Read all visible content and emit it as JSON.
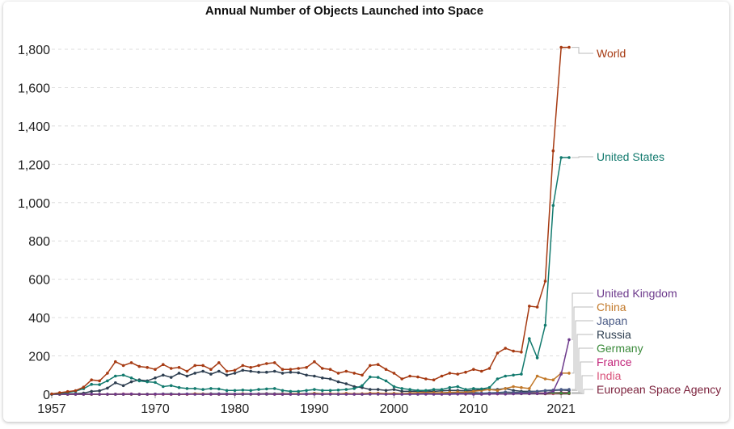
{
  "chart_data": {
    "type": "line",
    "title": "Annual Number of Objects Launched into Space",
    "xlabel": "",
    "ylabel": "",
    "xlim": [
      1957,
      2022
    ],
    "ylim": [
      0,
      1800
    ],
    "y_ticks": [
      0,
      200,
      400,
      600,
      800,
      1000,
      1200,
      1400,
      1600,
      1800
    ],
    "y_tick_labels": [
      "0",
      "200",
      "400",
      "600",
      "800",
      "1,000",
      "1,200",
      "1,400",
      "1,600",
      "1,800"
    ],
    "x_ticks": [
      1957,
      1970,
      1980,
      1990,
      2000,
      2010,
      2021
    ],
    "x_tick_labels": [
      "1957",
      "1970",
      "1980",
      "1990",
      "2000",
      "2010",
      "2021"
    ],
    "grid": true,
    "legend_placement": "right (end-of-line labels)",
    "x": [
      1957,
      1958,
      1959,
      1960,
      1961,
      1962,
      1963,
      1964,
      1965,
      1966,
      1967,
      1968,
      1969,
      1970,
      1971,
      1972,
      1973,
      1974,
      1975,
      1976,
      1977,
      1978,
      1979,
      1980,
      1981,
      1982,
      1983,
      1984,
      1985,
      1986,
      1987,
      1988,
      1989,
      1990,
      1991,
      1992,
      1993,
      1994,
      1995,
      1996,
      1997,
      1998,
      1999,
      2000,
      2001,
      2002,
      2003,
      2004,
      2005,
      2006,
      2007,
      2008,
      2009,
      2010,
      2011,
      2012,
      2013,
      2014,
      2015,
      2016,
      2017,
      2018,
      2019,
      2020,
      2021,
      2022
    ],
    "series": [
      {
        "name": "World",
        "color": "#a63a12",
        "values": [
          2,
          8,
          14,
          19,
          37,
          75,
          70,
          110,
          170,
          150,
          165,
          145,
          140,
          130,
          155,
          135,
          140,
          120,
          150,
          150,
          130,
          165,
          120,
          125,
          150,
          140,
          150,
          160,
          165,
          130,
          130,
          135,
          140,
          170,
          135,
          130,
          110,
          120,
          110,
          100,
          150,
          155,
          130,
          110,
          80,
          95,
          90,
          80,
          75,
          95,
          110,
          105,
          115,
          130,
          120,
          135,
          215,
          240,
          225,
          220,
          460,
          455,
          590,
          1270,
          1810,
          1810
        ]
      },
      {
        "name": "United States",
        "color": "#127a6e",
        "values": [
          1,
          5,
          10,
          16,
          29,
          52,
          50,
          70,
          95,
          100,
          85,
          70,
          65,
          62,
          40,
          45,
          35,
          30,
          30,
          25,
          30,
          28,
          20,
          20,
          22,
          20,
          25,
          28,
          30,
          20,
          15,
          15,
          20,
          25,
          20,
          20,
          22,
          25,
          30,
          45,
          90,
          88,
          70,
          40,
          30,
          25,
          20,
          20,
          25,
          25,
          35,
          40,
          25,
          30,
          28,
          35,
          80,
          95,
          100,
          105,
          290,
          190,
          360,
          985,
          1235,
          1235
        ]
      },
      {
        "name": "United Kingdom",
        "color": "#6d3a8c",
        "values": [
          0,
          0,
          0,
          0,
          0,
          1,
          0,
          0,
          0,
          0,
          1,
          0,
          0,
          1,
          1,
          0,
          0,
          1,
          0,
          0,
          0,
          1,
          0,
          0,
          1,
          1,
          0,
          1,
          0,
          0,
          0,
          0,
          0,
          1,
          0,
          1,
          0,
          0,
          0,
          0,
          1,
          1,
          0,
          0,
          0,
          0,
          0,
          1,
          0,
          0,
          0,
          1,
          2,
          0,
          0,
          1,
          2,
          1,
          2,
          3,
          3,
          4,
          5,
          15,
          105,
          285
        ]
      },
      {
        "name": "China",
        "color": "#c2792a",
        "values": [
          0,
          0,
          0,
          0,
          0,
          0,
          0,
          0,
          0,
          0,
          0,
          0,
          0,
          1,
          1,
          0,
          0,
          0,
          3,
          2,
          1,
          1,
          1,
          0,
          3,
          1,
          1,
          2,
          1,
          2,
          2,
          4,
          0,
          5,
          2,
          4,
          2,
          5,
          2,
          3,
          6,
          6,
          4,
          5,
          3,
          6,
          8,
          10,
          8,
          8,
          10,
          12,
          10,
          15,
          20,
          25,
          20,
          30,
          40,
          35,
          30,
          95,
          80,
          75,
          110,
          110
        ]
      },
      {
        "name": "Japan",
        "color": "#4a5b86",
        "values": [
          0,
          0,
          0,
          0,
          0,
          0,
          0,
          0,
          0,
          0,
          0,
          0,
          0,
          1,
          2,
          2,
          1,
          2,
          2,
          2,
          3,
          3,
          3,
          2,
          3,
          2,
          3,
          4,
          3,
          4,
          4,
          3,
          3,
          5,
          3,
          3,
          3,
          3,
          2,
          3,
          3,
          3,
          2,
          2,
          3,
          4,
          3,
          3,
          4,
          6,
          5,
          5,
          8,
          10,
          6,
          7,
          9,
          12,
          10,
          9,
          12,
          15,
          20,
          22,
          25,
          25
        ]
      },
      {
        "name": "Russia",
        "color": "#2d3e50",
        "values": [
          0,
          2,
          3,
          3,
          6,
          15,
          18,
          32,
          60,
          45,
          65,
          75,
          70,
          85,
          100,
          88,
          110,
          95,
          110,
          120,
          105,
          120,
          100,
          110,
          125,
          120,
          115,
          115,
          120,
          110,
          115,
          112,
          100,
          95,
          85,
          80,
          65,
          55,
          40,
          35,
          25,
          25,
          20,
          25,
          15,
          15,
          15,
          17,
          15,
          18,
          20,
          20,
          18,
          20,
          25,
          25,
          25,
          30,
          20,
          15,
          15,
          15,
          18,
          20,
          22,
          20
        ]
      },
      {
        "name": "Germany",
        "color": "#3a8a3a",
        "values": [
          0,
          0,
          0,
          0,
          0,
          0,
          0,
          0,
          0,
          0,
          0,
          0,
          1,
          1,
          1,
          2,
          0,
          1,
          1,
          0,
          1,
          0,
          0,
          0,
          0,
          0,
          1,
          0,
          1,
          0,
          1,
          0,
          2,
          2,
          0,
          1,
          0,
          1,
          1,
          0,
          1,
          1,
          1,
          3,
          1,
          2,
          1,
          2,
          2,
          3,
          2,
          2,
          3,
          2,
          4,
          3,
          5,
          4,
          4,
          3,
          5,
          6,
          5,
          8,
          6,
          6
        ]
      },
      {
        "name": "France",
        "color": "#c2257a",
        "values": [
          0,
          0,
          0,
          0,
          0,
          0,
          0,
          0,
          1,
          2,
          2,
          0,
          0,
          1,
          1,
          0,
          0,
          0,
          2,
          0,
          1,
          0,
          0,
          0,
          0,
          1,
          0,
          2,
          0,
          1,
          1,
          2,
          2,
          2,
          1,
          2,
          2,
          2,
          2,
          2,
          3,
          2,
          2,
          3,
          2,
          3,
          2,
          3,
          2,
          3,
          2,
          3,
          2,
          3,
          2,
          3,
          2,
          3,
          3,
          4,
          5,
          5,
          6,
          8,
          9,
          9
        ]
      },
      {
        "name": "India",
        "color": "#d9527a",
        "values": [
          0,
          0,
          0,
          0,
          0,
          0,
          0,
          0,
          0,
          0,
          0,
          0,
          0,
          0,
          0,
          0,
          0,
          0,
          1,
          0,
          0,
          0,
          1,
          1,
          1,
          1,
          1,
          1,
          0,
          0,
          1,
          1,
          0,
          1,
          0,
          1,
          1,
          1,
          0,
          0,
          1,
          1,
          1,
          0,
          1,
          1,
          1,
          1,
          1,
          1,
          2,
          2,
          2,
          2,
          3,
          3,
          3,
          4,
          5,
          8,
          10,
          8,
          6,
          4,
          5,
          5
        ]
      },
      {
        "name": "European Space Agency",
        "color": "#7a1f3a",
        "values": [
          0,
          0,
          0,
          0,
          0,
          0,
          0,
          0,
          0,
          0,
          0,
          0,
          0,
          0,
          0,
          0,
          0,
          0,
          1,
          1,
          2,
          1,
          1,
          0,
          1,
          1,
          1,
          1,
          1,
          0,
          0,
          1,
          1,
          2,
          1,
          1,
          1,
          1,
          1,
          1,
          1,
          1,
          2,
          2,
          1,
          2,
          1,
          1,
          2,
          1,
          1,
          2,
          1,
          2,
          1,
          2,
          2,
          2,
          3,
          4,
          3,
          3,
          2,
          3,
          3,
          3
        ]
      }
    ]
  }
}
